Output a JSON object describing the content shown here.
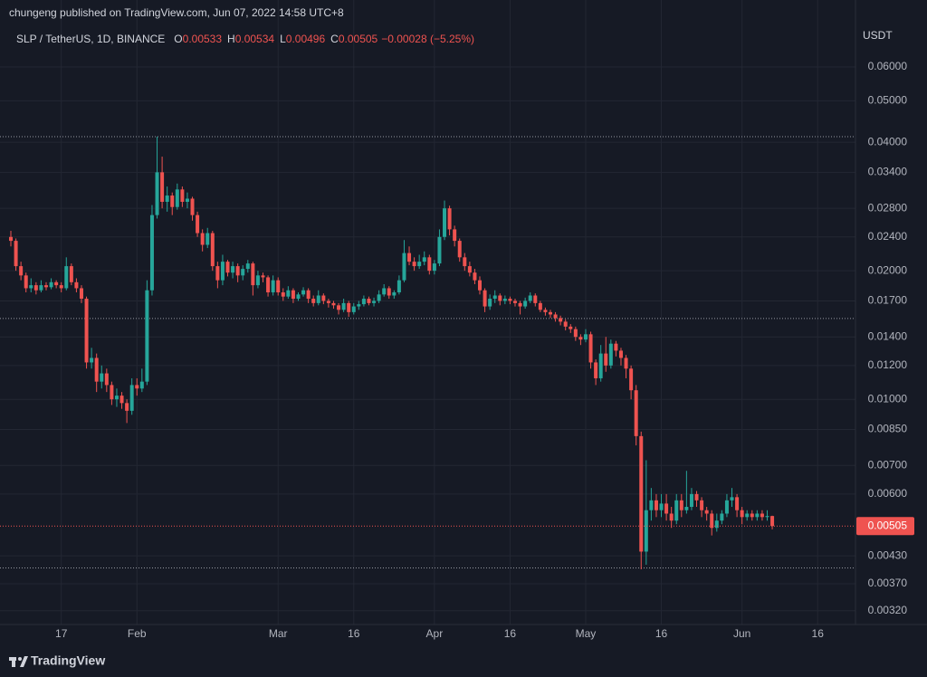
{
  "chart_data": {
    "type": "candlestick",
    "published_note": "chungeng published on TradingView.com, Jun 07, 2022 14:58 UTC+8",
    "title": "SLP / TetherUS, 1D, BINANCE",
    "ohlc_header": [
      {
        "label": "O",
        "value": 0.00533
      },
      {
        "label": "H",
        "value": 0.00534
      },
      {
        "label": "L",
        "value": 0.00496
      },
      {
        "label": "C",
        "value": 0.00505
      }
    ],
    "change_text": "−0.00028 (−5.25%)",
    "y_axis_label": "USDT",
    "watermark": "TradingView",
    "log_scale": true,
    "grid": true,
    "up_color": "#26a69a",
    "down_color": "#ef5350",
    "ylim": [
      0.00297,
      0.0762
    ],
    "yticks": [
      {
        "value": 0.06,
        "label": "0.06000"
      },
      {
        "value": 0.05,
        "label": "0.05000"
      },
      {
        "value": 0.04,
        "label": "0.04000"
      },
      {
        "value": 0.034,
        "label": "0.03400"
      },
      {
        "value": 0.028,
        "label": "0.02800"
      },
      {
        "value": 0.024,
        "label": "0.02400"
      },
      {
        "value": 0.02,
        "label": "0.02000"
      },
      {
        "value": 0.017,
        "label": "0.01700"
      },
      {
        "value": 0.014,
        "label": "0.01400"
      },
      {
        "value": 0.012,
        "label": "0.01200"
      },
      {
        "value": 0.01,
        "label": "0.01000"
      },
      {
        "value": 0.0085,
        "label": "0.00850"
      },
      {
        "value": 0.007,
        "label": "0.00700"
      },
      {
        "value": 0.006,
        "label": "0.00600"
      },
      {
        "value": 0.0043,
        "label": "0.00430"
      },
      {
        "value": 0.0037,
        "label": "0.00370"
      },
      {
        "value": 0.0032,
        "label": "0.00320"
      }
    ],
    "xticks": [
      {
        "value": "Jan 17",
        "label": "17"
      },
      {
        "value": "Feb 1",
        "label": "Feb"
      },
      {
        "value": "Mar 1",
        "label": "Mar"
      },
      {
        "value": "Mar 16",
        "label": "16"
      },
      {
        "value": "Apr 1",
        "label": "Apr"
      },
      {
        "value": "Apr 16",
        "label": "16"
      },
      {
        "value": "May 1",
        "label": "May"
      },
      {
        "value": "May 16",
        "label": "16"
      },
      {
        "value": "Jun 1",
        "label": "Jun"
      },
      {
        "value": "Jun 16",
        "label": "16"
      }
    ],
    "last_price": 0.00505,
    "horizontal_lines": [
      0.0412,
      0.01546,
      0.00403
    ],
    "x": [
      "Jan 7",
      "Jan 8",
      "Jan 9",
      "Jan 10",
      "Jan 11",
      "Jan 12",
      "Jan 13",
      "Jan 14",
      "Jan 15",
      "Jan 16",
      "Jan 17",
      "Jan 18",
      "Jan 19",
      "Jan 20",
      "Jan 21",
      "Jan 22",
      "Jan 23",
      "Jan 24",
      "Jan 25",
      "Jan 26",
      "Jan 27",
      "Jan 28",
      "Jan 29",
      "Jan 30",
      "Jan 31",
      "Feb 1",
      "Feb 2",
      "Feb 3",
      "Feb 4",
      "Feb 5",
      "Feb 6",
      "Feb 7",
      "Feb 8",
      "Feb 9",
      "Feb 10",
      "Feb 11",
      "Feb 12",
      "Feb 13",
      "Feb 14",
      "Feb 15",
      "Feb 16",
      "Feb 17",
      "Feb 18",
      "Feb 19",
      "Feb 20",
      "Feb 21",
      "Feb 22",
      "Feb 23",
      "Feb 24",
      "Feb 25",
      "Feb 26",
      "Feb 27",
      "Feb 28",
      "Mar 1",
      "Mar 2",
      "Mar 3",
      "Mar 4",
      "Mar 5",
      "Mar 6",
      "Mar 7",
      "Mar 8",
      "Mar 9",
      "Mar 10",
      "Mar 11",
      "Mar 12",
      "Mar 13",
      "Mar 14",
      "Mar 15",
      "Mar 16",
      "Mar 17",
      "Mar 18",
      "Mar 19",
      "Mar 20",
      "Mar 21",
      "Mar 22",
      "Mar 23",
      "Mar 24",
      "Mar 25",
      "Mar 26",
      "Mar 27",
      "Mar 28",
      "Mar 29",
      "Mar 30",
      "Mar 31",
      "Apr 1",
      "Apr 2",
      "Apr 3",
      "Apr 4",
      "Apr 5",
      "Apr 6",
      "Apr 7",
      "Apr 8",
      "Apr 9",
      "Apr 10",
      "Apr 11",
      "Apr 12",
      "Apr 13",
      "Apr 14",
      "Apr 15",
      "Apr 16",
      "Apr 17",
      "Apr 18",
      "Apr 19",
      "Apr 20",
      "Apr 21",
      "Apr 22",
      "Apr 23",
      "Apr 24",
      "Apr 25",
      "Apr 26",
      "Apr 27",
      "Apr 28",
      "Apr 29",
      "Apr 30",
      "May 1",
      "May 2",
      "May 3",
      "May 4",
      "May 5",
      "May 6",
      "May 7",
      "May 8",
      "May 9",
      "May 10",
      "May 11",
      "May 12",
      "May 13",
      "May 14",
      "May 15",
      "May 16",
      "May 17",
      "May 18",
      "May 19",
      "May 20",
      "May 21",
      "May 22",
      "May 23",
      "May 24",
      "May 25",
      "May 26",
      "May 27",
      "May 28",
      "May 29",
      "May 30",
      "May 31",
      "Jun 1",
      "Jun 2",
      "Jun 3",
      "Jun 4",
      "Jun 5",
      "Jun 6",
      "Jun 7"
    ],
    "ohlc": [
      [
        0.024,
        0.0248,
        0.0228,
        0.0235
      ],
      [
        0.0235,
        0.0238,
        0.02,
        0.0205
      ],
      [
        0.0205,
        0.021,
        0.019,
        0.0195
      ],
      [
        0.0195,
        0.0198,
        0.0178,
        0.0182
      ],
      [
        0.0182,
        0.0192,
        0.0178,
        0.0185
      ],
      [
        0.0185,
        0.0188,
        0.0176,
        0.018
      ],
      [
        0.018,
        0.019,
        0.0178,
        0.0185
      ],
      [
        0.0185,
        0.0188,
        0.018,
        0.0183
      ],
      [
        0.0183,
        0.0192,
        0.0181,
        0.0188
      ],
      [
        0.0188,
        0.019,
        0.0182,
        0.0185
      ],
      [
        0.0185,
        0.0188,
        0.0178,
        0.0182
      ],
      [
        0.0182,
        0.0215,
        0.018,
        0.0205
      ],
      [
        0.0205,
        0.0208,
        0.0185,
        0.0188
      ],
      [
        0.0188,
        0.0192,
        0.0178,
        0.0182
      ],
      [
        0.0182,
        0.0185,
        0.0168,
        0.0172
      ],
      [
        0.0172,
        0.0174,
        0.0118,
        0.0122
      ],
      [
        0.0122,
        0.0132,
        0.0118,
        0.0125
      ],
      [
        0.0125,
        0.0128,
        0.0104,
        0.011
      ],
      [
        0.011,
        0.012,
        0.0106,
        0.0115
      ],
      [
        0.0115,
        0.0118,
        0.0104,
        0.0108
      ],
      [
        0.0108,
        0.011,
        0.0097,
        0.01
      ],
      [
        0.01,
        0.0106,
        0.0096,
        0.0102
      ],
      [
        0.0102,
        0.0104,
        0.0095,
        0.0098
      ],
      [
        0.0098,
        0.01,
        0.0088,
        0.0094
      ],
      [
        0.0094,
        0.0112,
        0.0092,
        0.0108
      ],
      [
        0.0108,
        0.0112,
        0.0102,
        0.0106
      ],
      [
        0.0106,
        0.0118,
        0.0104,
        0.011
      ],
      [
        0.011,
        0.019,
        0.0108,
        0.018
      ],
      [
        0.018,
        0.0285,
        0.0175,
        0.027
      ],
      [
        0.027,
        0.0412,
        0.0265,
        0.034
      ],
      [
        0.034,
        0.037,
        0.028,
        0.029
      ],
      [
        0.029,
        0.0315,
        0.0275,
        0.03
      ],
      [
        0.03,
        0.0305,
        0.027,
        0.0282
      ],
      [
        0.0282,
        0.032,
        0.0278,
        0.031
      ],
      [
        0.031,
        0.0315,
        0.0282,
        0.029
      ],
      [
        0.029,
        0.0305,
        0.028,
        0.0295
      ],
      [
        0.0295,
        0.0298,
        0.0262,
        0.027
      ],
      [
        0.027,
        0.0275,
        0.024,
        0.0245
      ],
      [
        0.0245,
        0.025,
        0.0222,
        0.023
      ],
      [
        0.023,
        0.0252,
        0.0226,
        0.0245
      ],
      [
        0.0245,
        0.0248,
        0.02,
        0.0205
      ],
      [
        0.0205,
        0.021,
        0.0182,
        0.019
      ],
      [
        0.019,
        0.0218,
        0.0185,
        0.021
      ],
      [
        0.021,
        0.0212,
        0.0194,
        0.0198
      ],
      [
        0.0198,
        0.021,
        0.0192,
        0.0205
      ],
      [
        0.0205,
        0.0208,
        0.0188,
        0.0195
      ],
      [
        0.0195,
        0.0206,
        0.019,
        0.0202
      ],
      [
        0.0202,
        0.0212,
        0.0198,
        0.0208
      ],
      [
        0.0208,
        0.021,
        0.0175,
        0.0185
      ],
      [
        0.0185,
        0.02,
        0.0182,
        0.0195
      ],
      [
        0.0195,
        0.0198,
        0.0188,
        0.0193
      ],
      [
        0.0193,
        0.0195,
        0.0174,
        0.0178
      ],
      [
        0.0178,
        0.0195,
        0.0175,
        0.019
      ],
      [
        0.019,
        0.0193,
        0.0175,
        0.0178
      ],
      [
        0.0178,
        0.0182,
        0.017,
        0.0174
      ],
      [
        0.0174,
        0.0184,
        0.0172,
        0.018
      ],
      [
        0.018,
        0.0182,
        0.0168,
        0.0172
      ],
      [
        0.0172,
        0.0178,
        0.017,
        0.0176
      ],
      [
        0.0176,
        0.0183,
        0.0174,
        0.018
      ],
      [
        0.018,
        0.0182,
        0.0168,
        0.0172
      ],
      [
        0.0172,
        0.0175,
        0.0165,
        0.0168
      ],
      [
        0.0168,
        0.018,
        0.0166,
        0.0175
      ],
      [
        0.0175,
        0.0177,
        0.0167,
        0.017
      ],
      [
        0.017,
        0.0172,
        0.0164,
        0.0168
      ],
      [
        0.0168,
        0.017,
        0.0163,
        0.0166
      ],
      [
        0.0166,
        0.0168,
        0.0158,
        0.0162
      ],
      [
        0.0162,
        0.0172,
        0.016,
        0.0168
      ],
      [
        0.0168,
        0.017,
        0.0156,
        0.016
      ],
      [
        0.016,
        0.0168,
        0.0158,
        0.0165
      ],
      [
        0.0165,
        0.017,
        0.0162,
        0.0167
      ],
      [
        0.0167,
        0.0175,
        0.0165,
        0.0172
      ],
      [
        0.0172,
        0.0174,
        0.0166,
        0.0168
      ],
      [
        0.0168,
        0.0173,
        0.0165,
        0.017
      ],
      [
        0.017,
        0.018,
        0.0168,
        0.0176
      ],
      [
        0.0176,
        0.0186,
        0.0174,
        0.0182
      ],
      [
        0.0182,
        0.0184,
        0.0172,
        0.0175
      ],
      [
        0.0175,
        0.018,
        0.0172,
        0.0178
      ],
      [
        0.0178,
        0.0195,
        0.0176,
        0.019
      ],
      [
        0.019,
        0.0236,
        0.0188,
        0.022
      ],
      [
        0.022,
        0.0228,
        0.0206,
        0.021
      ],
      [
        0.021,
        0.0215,
        0.02,
        0.0205
      ],
      [
        0.0205,
        0.0218,
        0.0202,
        0.021
      ],
      [
        0.021,
        0.0222,
        0.0206,
        0.0215
      ],
      [
        0.0215,
        0.0218,
        0.0196,
        0.02
      ],
      [
        0.02,
        0.0212,
        0.0196,
        0.0208
      ],
      [
        0.0208,
        0.025,
        0.0205,
        0.024
      ],
      [
        0.024,
        0.0292,
        0.0236,
        0.028
      ],
      [
        0.028,
        0.0284,
        0.0242,
        0.025
      ],
      [
        0.025,
        0.0255,
        0.0228,
        0.0235
      ],
      [
        0.0235,
        0.0238,
        0.021,
        0.0215
      ],
      [
        0.0215,
        0.022,
        0.02,
        0.0205
      ],
      [
        0.0205,
        0.021,
        0.0194,
        0.0198
      ],
      [
        0.0198,
        0.0202,
        0.0186,
        0.019
      ],
      [
        0.019,
        0.0194,
        0.0176,
        0.018
      ],
      [
        0.018,
        0.0182,
        0.016,
        0.0165
      ],
      [
        0.0165,
        0.0176,
        0.0162,
        0.0172
      ],
      [
        0.0172,
        0.018,
        0.0168,
        0.0175
      ],
      [
        0.0175,
        0.0177,
        0.0166,
        0.017
      ],
      [
        0.017,
        0.0175,
        0.0167,
        0.0172
      ],
      [
        0.0172,
        0.0174,
        0.0167,
        0.017
      ],
      [
        0.017,
        0.0172,
        0.0165,
        0.0168
      ],
      [
        0.0168,
        0.017,
        0.0158,
        0.0165
      ],
      [
        0.0165,
        0.0173,
        0.0163,
        0.017
      ],
      [
        0.017,
        0.0178,
        0.0168,
        0.0175
      ],
      [
        0.0175,
        0.0177,
        0.0165,
        0.0168
      ],
      [
        0.0168,
        0.017,
        0.016,
        0.0162
      ],
      [
        0.0162,
        0.0164,
        0.0157,
        0.016
      ],
      [
        0.016,
        0.0162,
        0.0155,
        0.0158
      ],
      [
        0.0158,
        0.016,
        0.0152,
        0.0155
      ],
      [
        0.0155,
        0.0157,
        0.0149,
        0.0152
      ],
      [
        0.0152,
        0.0154,
        0.0145,
        0.0148
      ],
      [
        0.0148,
        0.015,
        0.0143,
        0.0146
      ],
      [
        0.0146,
        0.0148,
        0.0137,
        0.014
      ],
      [
        0.014,
        0.0142,
        0.0134,
        0.0138
      ],
      [
        0.0138,
        0.0146,
        0.0136,
        0.0142
      ],
      [
        0.0142,
        0.0144,
        0.0118,
        0.0122
      ],
      [
        0.0122,
        0.0124,
        0.0108,
        0.0112
      ],
      [
        0.0112,
        0.0134,
        0.011,
        0.0128
      ],
      [
        0.0128,
        0.014,
        0.0116,
        0.012
      ],
      [
        0.012,
        0.0138,
        0.0118,
        0.0135
      ],
      [
        0.0135,
        0.0137,
        0.0126,
        0.013
      ],
      [
        0.013,
        0.0132,
        0.012,
        0.0125
      ],
      [
        0.0125,
        0.0127,
        0.0112,
        0.0118
      ],
      [
        0.0118,
        0.012,
        0.01,
        0.0105
      ],
      [
        0.0105,
        0.0108,
        0.0078,
        0.0082
      ],
      [
        0.0082,
        0.0084,
        0.004,
        0.0044
      ],
      [
        0.0044,
        0.0072,
        0.0041,
        0.0055
      ],
      [
        0.0055,
        0.0062,
        0.0052,
        0.0058
      ],
      [
        0.0058,
        0.006,
        0.0053,
        0.0055
      ],
      [
        0.0055,
        0.006,
        0.0053,
        0.0057
      ],
      [
        0.0057,
        0.006,
        0.0052,
        0.0054
      ],
      [
        0.0054,
        0.0056,
        0.005,
        0.0052
      ],
      [
        0.0052,
        0.006,
        0.0051,
        0.0058
      ],
      [
        0.0058,
        0.006,
        0.0053,
        0.0055
      ],
      [
        0.0055,
        0.0068,
        0.0054,
        0.0056
      ],
      [
        0.0056,
        0.0062,
        0.0055,
        0.006
      ],
      [
        0.006,
        0.0061,
        0.0056,
        0.0058
      ],
      [
        0.0058,
        0.0059,
        0.0053,
        0.0055
      ],
      [
        0.0055,
        0.0056,
        0.0052,
        0.0054
      ],
      [
        0.0054,
        0.0055,
        0.0048,
        0.005
      ],
      [
        0.005,
        0.0054,
        0.0049,
        0.0052
      ],
      [
        0.0052,
        0.0055,
        0.0051,
        0.0054
      ],
      [
        0.0054,
        0.006,
        0.0053,
        0.0058
      ],
      [
        0.0058,
        0.0062,
        0.0056,
        0.0059
      ],
      [
        0.0059,
        0.006,
        0.0053,
        0.0055
      ],
      [
        0.0055,
        0.0056,
        0.0051,
        0.0053
      ],
      [
        0.0053,
        0.0055,
        0.0052,
        0.0054
      ],
      [
        0.0054,
        0.0055,
        0.0052,
        0.0053
      ],
      [
        0.0053,
        0.0055,
        0.0052,
        0.0054
      ],
      [
        0.0054,
        0.0055,
        0.0052,
        0.0053
      ],
      [
        0.0053,
        0.0055,
        0.0052,
        0.00533
      ],
      [
        0.00533,
        0.00534,
        0.00496,
        0.00505
      ]
    ]
  }
}
